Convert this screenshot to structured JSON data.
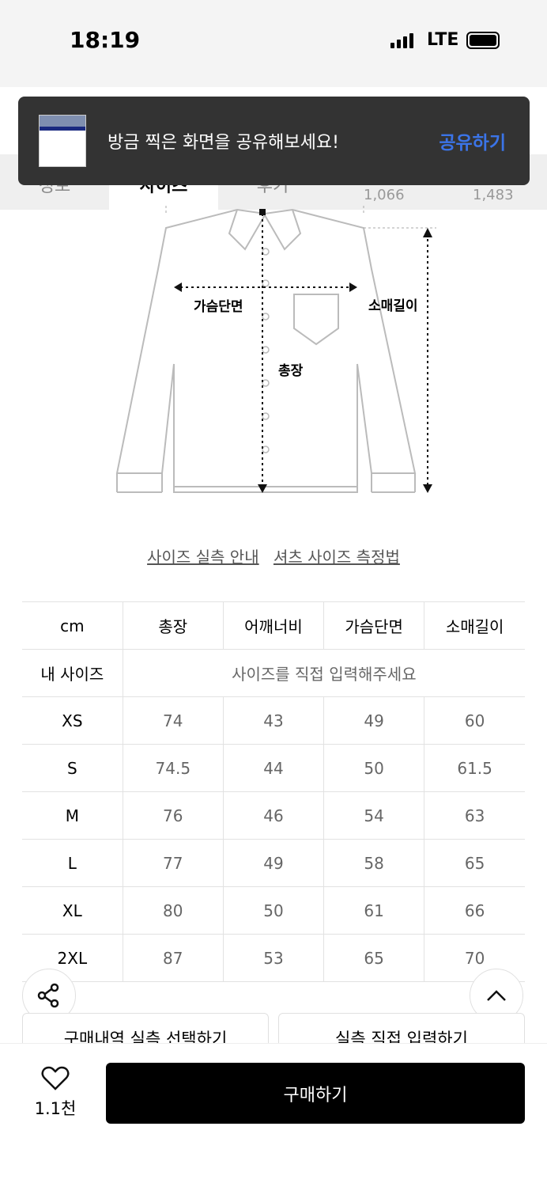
{
  "status": {
    "time": "18:19",
    "network": "LTE"
  },
  "tabs": [
    {
      "label": "정보"
    },
    {
      "label": "사이즈"
    },
    {
      "label": "후기"
    }
  ],
  "counts": [
    "1,066",
    "1,483"
  ],
  "toast": {
    "message": "방금 찍은 화면을 공유해보세요!",
    "action": "공유하기"
  },
  "diagram": {
    "chest": "가슴단면",
    "sleeve": "소매길이",
    "length": "총장"
  },
  "links": [
    "사이즈 실측 안내",
    "셔츠 사이즈 측정법"
  ],
  "table": {
    "headers": [
      "cm",
      "총장",
      "어깨너비",
      "가슴단면",
      "소매길이"
    ],
    "my_size_label": "내 사이즈",
    "my_size_prompt": "사이즈를 직접 입력해주세요",
    "rows": [
      [
        "XS",
        "74",
        "43",
        "49",
        "60"
      ],
      [
        "S",
        "74.5",
        "44",
        "50",
        "61.5"
      ],
      [
        "M",
        "76",
        "46",
        "54",
        "63"
      ],
      [
        "L",
        "77",
        "49",
        "58",
        "65"
      ],
      [
        "XL",
        "80",
        "50",
        "61",
        "66"
      ],
      [
        "2XL",
        "87",
        "53",
        "65",
        "70"
      ]
    ]
  },
  "buttons": {
    "history": "구매내역 실측 선택하기",
    "direct": "실측 직접 입력하기",
    "buy": "구매하기",
    "likes": "1.1천"
  },
  "colors": {
    "accent": "#3b74e8",
    "toast_bg": "#333333"
  }
}
